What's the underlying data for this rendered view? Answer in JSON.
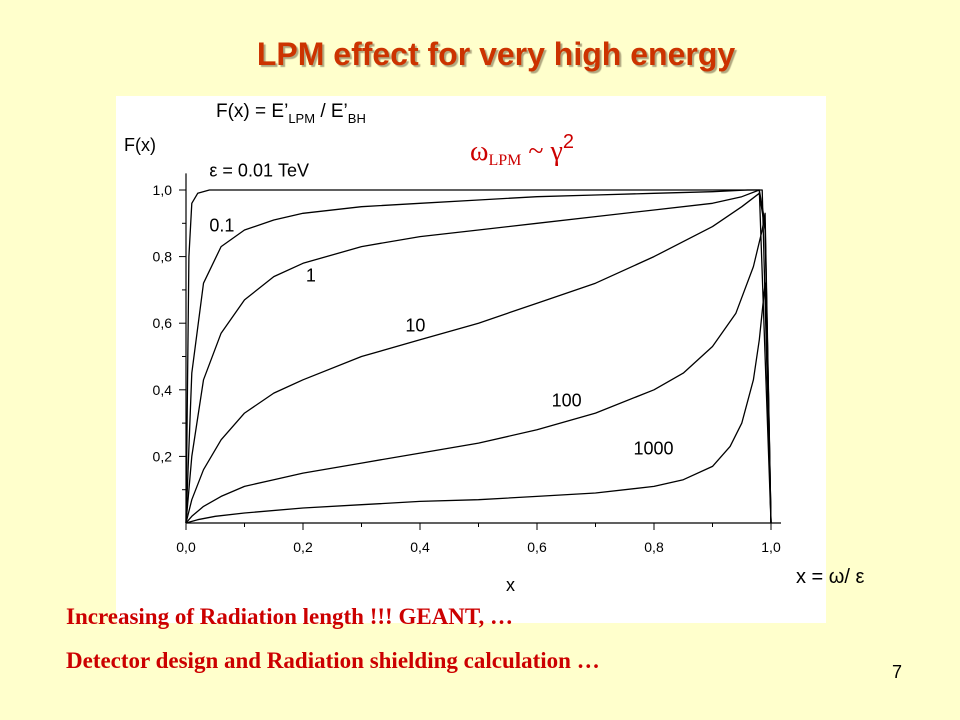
{
  "slide": {
    "title": "LPM effect for very high energy",
    "notes": [
      "Increasing of Radiation length !!!   GEANT, …",
      "Detector design and Radiation shielding calculation …"
    ],
    "page_number": "7",
    "accent_color": "#cc3300"
  },
  "chart_data": {
    "type": "line",
    "formula": {
      "prefix": "F(x) = E’",
      "sub1": "LPM",
      "mid": " / E’",
      "sub2": "BH"
    },
    "scaling": {
      "omega": "ω",
      "sub": "LPM",
      "rest": " ~ γ",
      "sup": "2"
    },
    "ylabel": "F(x)",
    "xlabel": "x",
    "xlabel_outside": "x = ω/ ε",
    "xlim": [
      0,
      1
    ],
    "ylim": [
      0,
      1.05
    ],
    "x_ticks": [
      "0,0",
      "0,2",
      "0,4",
      "0,6",
      "0,8",
      "1,0"
    ],
    "y_ticks": [
      "0,2",
      "0,4",
      "0,6",
      "0,8",
      "1,0"
    ],
    "grid": false,
    "series": [
      {
        "name": "ε = 0.01 TeV",
        "x": [
          0,
          0.005,
          0.01,
          0.02,
          0.04,
          0.1,
          0.5,
          0.98,
          0.99,
          1.0
        ],
        "y": [
          0,
          0.8,
          0.96,
          0.99,
          1.0,
          1.0,
          1.0,
          1.0,
          0.5,
          0
        ]
      },
      {
        "name": "0.1",
        "x": [
          0,
          0.01,
          0.03,
          0.06,
          0.1,
          0.15,
          0.2,
          0.3,
          0.4,
          0.5,
          0.6,
          0.7,
          0.8,
          0.9,
          0.96,
          0.985,
          1.0
        ],
        "y": [
          0,
          0.45,
          0.72,
          0.83,
          0.88,
          0.91,
          0.93,
          0.95,
          0.96,
          0.97,
          0.98,
          0.985,
          0.99,
          0.995,
          1.0,
          1.0,
          0
        ]
      },
      {
        "name": "1",
        "x": [
          0,
          0.01,
          0.03,
          0.06,
          0.1,
          0.15,
          0.2,
          0.3,
          0.4,
          0.5,
          0.6,
          0.7,
          0.8,
          0.9,
          0.95,
          0.98,
          0.99,
          1.0
        ],
        "y": [
          0,
          0.2,
          0.43,
          0.57,
          0.67,
          0.74,
          0.78,
          0.83,
          0.86,
          0.88,
          0.9,
          0.92,
          0.94,
          0.96,
          0.98,
          1.0,
          0.9,
          0
        ]
      },
      {
        "name": "10",
        "x": [
          0,
          0.01,
          0.03,
          0.06,
          0.1,
          0.15,
          0.2,
          0.3,
          0.4,
          0.5,
          0.6,
          0.7,
          0.8,
          0.9,
          0.95,
          0.98,
          0.99,
          1.0
        ],
        "y": [
          0,
          0.07,
          0.16,
          0.25,
          0.33,
          0.39,
          0.43,
          0.5,
          0.55,
          0.6,
          0.66,
          0.72,
          0.8,
          0.89,
          0.95,
          0.99,
          0.88,
          0
        ]
      },
      {
        "name": "100",
        "x": [
          0,
          0.01,
          0.03,
          0.06,
          0.1,
          0.15,
          0.2,
          0.3,
          0.4,
          0.5,
          0.6,
          0.7,
          0.8,
          0.85,
          0.9,
          0.94,
          0.97,
          0.985,
          0.99,
          1.0
        ],
        "y": [
          0,
          0.02,
          0.05,
          0.08,
          0.11,
          0.13,
          0.15,
          0.18,
          0.21,
          0.24,
          0.28,
          0.33,
          0.4,
          0.45,
          0.53,
          0.63,
          0.77,
          0.88,
          0.93,
          0
        ]
      },
      {
        "name": "1000",
        "x": [
          0,
          0.02,
          0.05,
          0.1,
          0.2,
          0.3,
          0.4,
          0.5,
          0.6,
          0.7,
          0.8,
          0.85,
          0.9,
          0.93,
          0.95,
          0.97,
          0.98,
          0.99,
          1.0
        ],
        "y": [
          0,
          0.01,
          0.02,
          0.03,
          0.045,
          0.055,
          0.065,
          0.07,
          0.08,
          0.09,
          0.11,
          0.13,
          0.17,
          0.23,
          0.3,
          0.43,
          0.55,
          0.72,
          0
        ]
      }
    ],
    "label_data_positions": [
      {
        "x": 0.04,
        "y": 1.04
      },
      {
        "x": 0.04,
        "y": 0.875
      },
      {
        "x": 0.205,
        "y": 0.725
      },
      {
        "x": 0.375,
        "y": 0.575
      },
      {
        "x": 0.625,
        "y": 0.35
      },
      {
        "x": 0.765,
        "y": 0.205
      }
    ]
  }
}
